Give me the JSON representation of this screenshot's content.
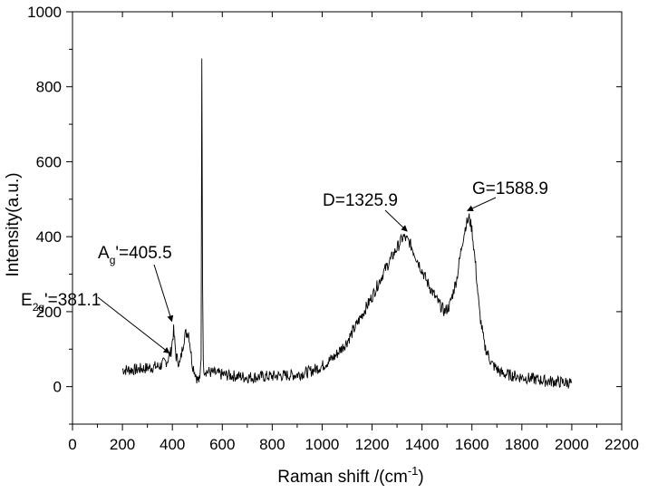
{
  "chart_data": {
    "type": "line",
    "title": "",
    "xlabel_main": "Raman shift /(cm",
    "xlabel_sup": "-1",
    "xlabel_tail": ")",
    "ylabel": "Intensity(a.u.)",
    "xlim": [
      0,
      2200
    ],
    "ylim": [
      -100,
      1000
    ],
    "xticks": [
      0,
      200,
      400,
      600,
      800,
      1000,
      1200,
      1400,
      1600,
      1800,
      2000,
      2200
    ],
    "yticks": [
      0,
      200,
      400,
      600,
      800,
      1000
    ],
    "grid": false,
    "legend": "none",
    "series_color": "#000000",
    "series": [
      {
        "x": [
          200,
          250,
          300,
          350,
          380,
          395,
          405,
          415,
          430,
          450,
          465,
          480,
          500,
          510,
          515,
          518,
          521,
          524,
          528,
          540,
          600,
          700,
          800,
          900,
          950,
          1000,
          1050,
          1100,
          1150,
          1200,
          1250,
          1300,
          1325,
          1350,
          1380,
          1420,
          1460,
          1490,
          1510,
          1540,
          1560,
          1575,
          1589,
          1600,
          1615,
          1630,
          1650,
          1680,
          1720,
          1800,
          1900,
          2000
        ],
        "y": [
          45,
          45,
          50,
          55,
          70,
          95,
          150,
          80,
          60,
          140,
          145,
          60,
          20,
          15,
          80,
          880,
          300,
          60,
          45,
          40,
          32,
          25,
          28,
          32,
          40,
          55,
          80,
          120,
          180,
          240,
          310,
          370,
          400,
          385,
          340,
          280,
          230,
          200,
          215,
          290,
          380,
          430,
          450,
          420,
          320,
          200,
          110,
          60,
          35,
          25,
          15,
          10
        ]
      }
    ],
    "annotations": [
      {
        "label_main": "E",
        "label_sub": "2g",
        "label_tail": "'=381.1",
        "x": 381.1,
        "y": 70
      },
      {
        "label_main": "A",
        "label_sub": "g",
        "label_tail": "'=405.5",
        "x": 405.5,
        "y": 150
      },
      {
        "label_main": "D=1325.9",
        "label_sub": "",
        "label_tail": "",
        "x": 1325.9,
        "y": 400
      },
      {
        "label_main": "G=1588.9",
        "label_sub": "",
        "label_tail": "",
        "x": 1588.9,
        "y": 455
      }
    ]
  }
}
